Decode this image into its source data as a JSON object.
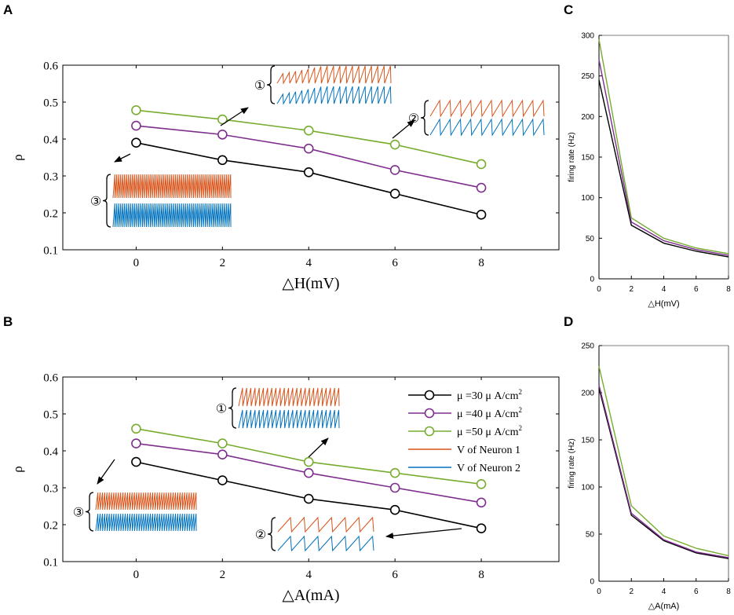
{
  "panel_letters": [
    "A",
    "B",
    "C",
    "D"
  ],
  "colors": {
    "mu30": "#000000",
    "mu40": "#7e2f8e",
    "mu50": "#77ac30",
    "neuron1": "#d95319",
    "neuron2": "#0072bd"
  },
  "legend": {
    "entries": [
      {
        "prefix": "μ =30 μ A/cm",
        "sup": "2",
        "series": "mu30",
        "marker": "circle"
      },
      {
        "prefix": "μ =40 μ A/cm",
        "sup": "2",
        "series": "mu40",
        "marker": "circle"
      },
      {
        "prefix": "μ =50 μ A/cm",
        "sup": "2",
        "series": "mu50",
        "marker": "circle"
      },
      {
        "prefix": "V of Neuron 1",
        "sup": "",
        "series": "neuron1",
        "marker": "line"
      },
      {
        "prefix": "V of Neuron 2",
        "sup": "",
        "series": "neuron2",
        "marker": "line"
      }
    ]
  },
  "insets": {
    "A": [
      {
        "label": "①",
        "spikes": 18
      },
      {
        "label": "②",
        "spikes": 11
      },
      {
        "label": "③",
        "spikes": 60
      }
    ],
    "B": [
      {
        "label": "①",
        "spikes": 24
      },
      {
        "label": "②",
        "spikes": 7
      },
      {
        "label": "③",
        "spikes": 44
      }
    ]
  },
  "chart_data": [
    {
      "panel": "A",
      "type": "line",
      "xlabel": "△H(mV)",
      "ylabel": "ρ",
      "x": [
        0,
        2,
        4,
        6,
        8
      ],
      "xticks": [
        "0",
        "2",
        "4",
        "6",
        "8"
      ],
      "yticks": [
        "0.1",
        "0.2",
        "0.3",
        "0.4",
        "0.5",
        "0.6"
      ],
      "xlim": [
        -1.7,
        9.8
      ],
      "ylim": [
        0.1,
        0.6
      ],
      "series": [
        {
          "name": "mu30",
          "values": [
            0.39,
            0.343,
            0.31,
            0.252,
            0.195
          ]
        },
        {
          "name": "mu40",
          "values": [
            0.436,
            0.412,
            0.374,
            0.316,
            0.268
          ]
        },
        {
          "name": "mu50",
          "values": [
            0.478,
            0.453,
            0.423,
            0.385,
            0.332
          ]
        }
      ]
    },
    {
      "panel": "B",
      "type": "line",
      "xlabel": "△A(mA)",
      "ylabel": "ρ",
      "x": [
        0,
        2,
        4,
        6,
        8
      ],
      "xticks": [
        "0",
        "2",
        "4",
        "6",
        "8"
      ],
      "yticks": [
        "0.1",
        "0.2",
        "0.3",
        "0.4",
        "0.5",
        "0.6"
      ],
      "xlim": [
        -1.7,
        9.8
      ],
      "ylim": [
        0.1,
        0.6
      ],
      "series": [
        {
          "name": "mu30",
          "values": [
            0.37,
            0.32,
            0.27,
            0.24,
            0.19
          ]
        },
        {
          "name": "mu40",
          "values": [
            0.42,
            0.39,
            0.34,
            0.3,
            0.26
          ]
        },
        {
          "name": "mu50",
          "values": [
            0.46,
            0.42,
            0.37,
            0.34,
            0.31
          ]
        }
      ]
    },
    {
      "panel": "C",
      "type": "line",
      "xlabel": "△H(mV)",
      "ylabel": "firing rate (Hz)",
      "x": [
        0,
        2,
        4,
        6,
        8
      ],
      "xticks": [
        "0",
        "2",
        "4",
        "6",
        "8"
      ],
      "yticks": [
        "0",
        "50",
        "100",
        "150",
        "200",
        "250",
        "300"
      ],
      "xlim": [
        0,
        8
      ],
      "ylim": [
        0,
        300
      ],
      "series": [
        {
          "name": "mu30",
          "values": [
            245,
            66,
            44,
            34,
            27
          ]
        },
        {
          "name": "mu40",
          "values": [
            270,
            70,
            47,
            36,
            29
          ]
        },
        {
          "name": "mu50",
          "values": [
            295,
            75,
            50,
            38,
            31
          ]
        }
      ]
    },
    {
      "panel": "D",
      "type": "line",
      "xlabel": "△A(mA)",
      "ylabel": "firing rate (Hz)",
      "x": [
        0,
        2,
        4,
        6,
        8
      ],
      "xticks": [
        "0",
        "2",
        "4",
        "6",
        "8"
      ],
      "yticks": [
        "0",
        "50",
        "100",
        "150",
        "200",
        "250"
      ],
      "xlim": [
        0,
        8
      ],
      "ylim": [
        0,
        250
      ],
      "series": [
        {
          "name": "mu30",
          "values": [
            205,
            70,
            43,
            30,
            24
          ]
        },
        {
          "name": "mu40",
          "values": [
            208,
            72,
            44,
            31,
            25
          ]
        },
        {
          "name": "mu50",
          "values": [
            228,
            80,
            48,
            35,
            27
          ]
        }
      ]
    }
  ]
}
